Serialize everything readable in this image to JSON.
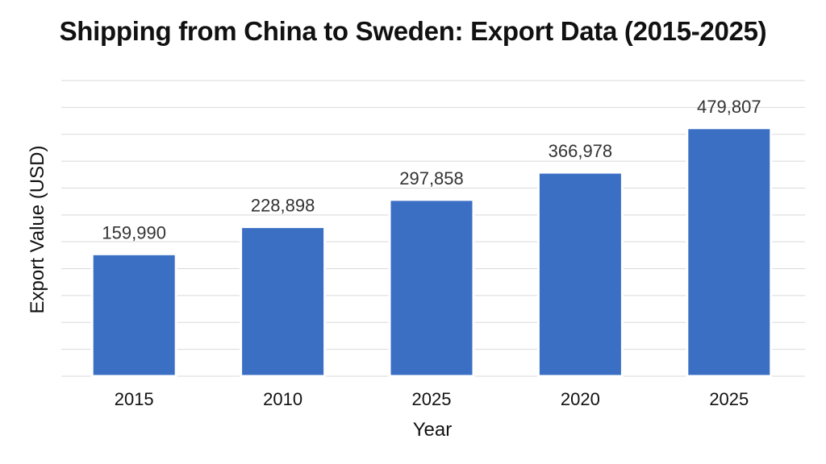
{
  "chart_data": {
    "type": "bar",
    "title": "Shipping from China to Sweden: Export Data (2015-2025)",
    "xlabel": "Year",
    "ylabel": "Export Value (USD)",
    "categories": [
      "2015",
      "2010",
      "2025",
      "2020",
      "2025"
    ],
    "values": [
      159990,
      228898,
      297858,
      366978,
      479807
    ],
    "value_labels": [
      "159,990",
      "228,898",
      "297,858",
      "366,978",
      "479,807"
    ],
    "ylim": [
      -150000,
      600000
    ],
    "grid": true,
    "bar_color": "#3b6fc4",
    "legend": "none"
  }
}
